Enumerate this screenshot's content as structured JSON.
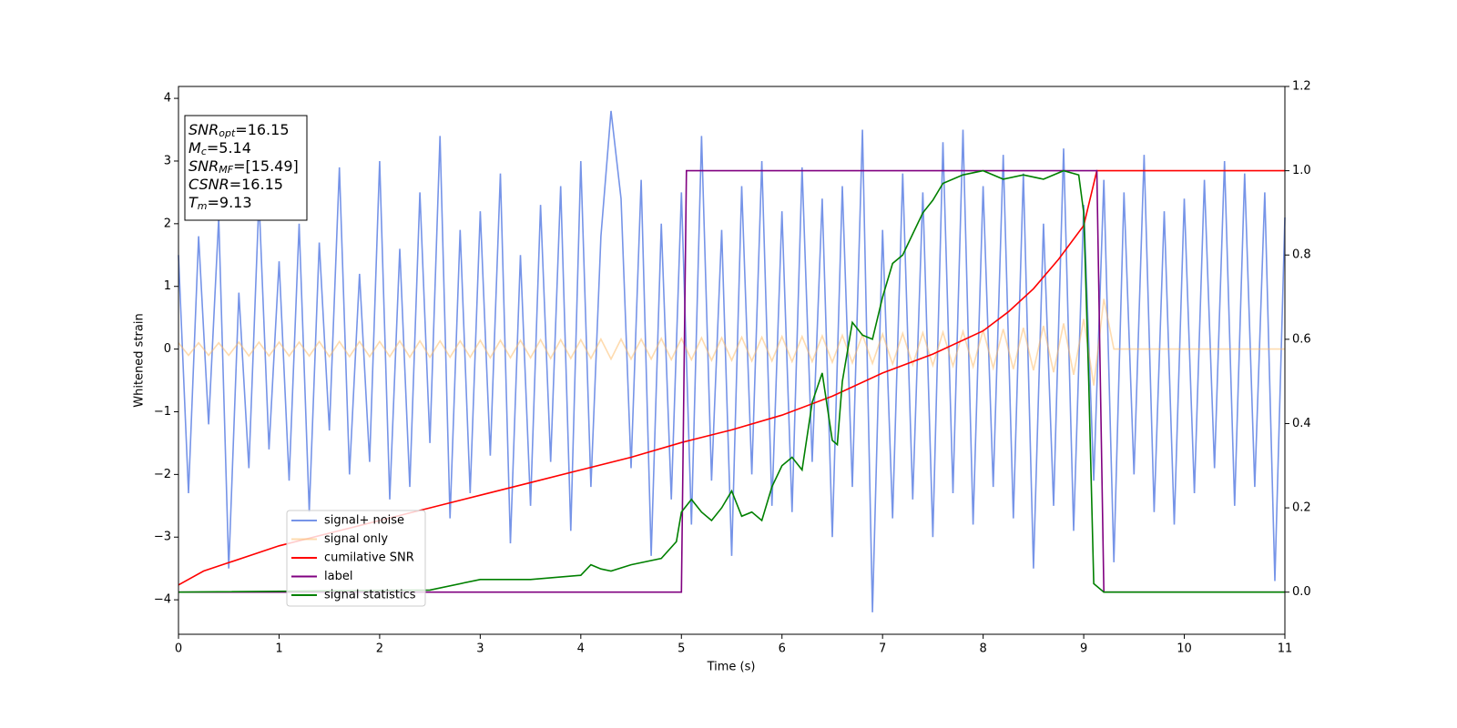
{
  "chart_data": {
    "type": "line",
    "xlabel": "Time (s)",
    "ylabel": "Whitened strain",
    "xlim": [
      0,
      11
    ],
    "xticks": [
      0,
      1,
      2,
      3,
      4,
      5,
      6,
      7,
      8,
      9,
      10,
      11
    ],
    "ylim": [
      -4.55,
      4.19
    ],
    "yticks": [
      {
        "value": -4,
        "label": "−4"
      },
      {
        "value": -3,
        "label": "−3"
      },
      {
        "value": -2,
        "label": "−2"
      },
      {
        "value": -1,
        "label": "−1"
      },
      0,
      1,
      2,
      3,
      4
    ],
    "y2lim": [
      -0.1,
      1.2
    ],
    "y2ticks": [
      {
        "value": 0,
        "label": "0.0"
      },
      {
        "value": 0.2,
        "label": "0.2"
      },
      {
        "value": 0.4,
        "label": "0.4"
      },
      {
        "value": 0.6,
        "label": "0.6"
      },
      {
        "value": 0.8,
        "label": "0.8"
      },
      {
        "value": 1,
        "label": "1.0"
      },
      {
        "value": 1.2,
        "label": "1.2"
      }
    ],
    "legend": "lower left",
    "annotation": [
      {
        "main": "SNR",
        "sub": "opt",
        "rest": "=16.15"
      },
      {
        "main": "M",
        "sub": "c",
        "rest": "=5.14"
      },
      {
        "main": "SNR",
        "sub": "MF",
        "rest": "=[15.49]"
      },
      {
        "main": "CSNR",
        "sub": "",
        "rest": "=16.15"
      },
      {
        "main": "T",
        "sub": "m",
        "rest": "=9.13"
      }
    ],
    "series": [
      {
        "name": "signal+ noise",
        "color": "#7694e8",
        "opacity": 1,
        "x": [
          0,
          0.1,
          0.2,
          0.3,
          0.4,
          0.5,
          0.6,
          0.7,
          0.8,
          0.9,
          1,
          1.1,
          1.2,
          1.3,
          1.4,
          1.5,
          1.6,
          1.7,
          1.8,
          1.9,
          2,
          2.1,
          2.2,
          2.3,
          2.4,
          2.5,
          2.6,
          2.7,
          2.8,
          2.9,
          3,
          3.1,
          3.2,
          3.3,
          3.4,
          3.5,
          3.6,
          3.7,
          3.8,
          3.9,
          4,
          4.1,
          4.2,
          4.3,
          4.4,
          4.5,
          4.6,
          4.7,
          4.8,
          4.9,
          5,
          5.1,
          5.2,
          5.3,
          5.4,
          5.5,
          5.6,
          5.7,
          5.8,
          5.9,
          6,
          6.1,
          6.2,
          6.3,
          6.4,
          6.5,
          6.6,
          6.7,
          6.8,
          6.9,
          7,
          7.1,
          7.2,
          7.3,
          7.4,
          7.5,
          7.6,
          7.7,
          7.8,
          7.9,
          8,
          8.1,
          8.2,
          8.3,
          8.4,
          8.5,
          8.6,
          8.7,
          8.8,
          8.9,
          9,
          9.1,
          9.2,
          9.3,
          9.4,
          9.5,
          9.6,
          9.7,
          9.8,
          9.9,
          10,
          10.1,
          10.2,
          10.3,
          10.4,
          10.5,
          10.6,
          10.7,
          10.8,
          10.9,
          11
        ],
        "values": [
          1.5,
          -2.3,
          1.8,
          -1.2,
          2.1,
          -3.5,
          0.9,
          -1.9,
          2.4,
          -1.6,
          1.4,
          -2.1,
          2.0,
          -2.6,
          1.7,
          -1.3,
          2.9,
          -2.0,
          1.2,
          -1.8,
          3.0,
          -2.4,
          1.6,
          -2.2,
          2.5,
          -1.5,
          3.4,
          -2.7,
          1.9,
          -2.3,
          2.2,
          -1.7,
          2.8,
          -3.1,
          1.5,
          -2.5,
          2.3,
          -1.8,
          2.6,
          -2.9,
          3.0,
          -2.2,
          1.8,
          3.8,
          2.4,
          -1.9,
          2.7,
          -3.3,
          2.0,
          -2.4,
          2.5,
          -2.8,
          3.4,
          -2.1,
          1.9,
          -3.3,
          2.6,
          -2.0,
          3.0,
          -2.5,
          2.2,
          -2.6,
          2.9,
          -1.8,
          2.4,
          -3.0,
          2.6,
          -2.2,
          3.5,
          -4.2,
          1.9,
          -2.7,
          2.8,
          -2.4,
          2.5,
          -3.0,
          3.3,
          -2.3,
          3.5,
          -2.8,
          2.6,
          -2.2,
          3.1,
          -2.7,
          2.8,
          -3.5,
          2.0,
          -2.5,
          3.2,
          -2.9,
          2.3,
          -2.1,
          2.7,
          -3.4,
          2.5,
          -2.0,
          3.1,
          -2.6,
          2.2,
          -2.8,
          2.4,
          -2.3,
          2.7,
          -1.9,
          3.0,
          -2.5,
          2.8,
          -2.2,
          2.5,
          -3.7,
          2.1
        ]
      },
      {
        "name": "signal only",
        "color": "#fdb860",
        "opacity": 0.5,
        "x": [
          0,
          0.1,
          0.2,
          0.3,
          0.4,
          0.5,
          0.6,
          0.7,
          0.8,
          0.9,
          1,
          1.1,
          1.2,
          1.3,
          1.4,
          1.5,
          1.6,
          1.7,
          1.8,
          1.9,
          2,
          2.1,
          2.2,
          2.3,
          2.4,
          2.5,
          2.6,
          2.7,
          2.8,
          2.9,
          3,
          3.1,
          3.2,
          3.3,
          3.4,
          3.5,
          3.6,
          3.7,
          3.8,
          3.9,
          4,
          4.1,
          4.2,
          4.3,
          4.4,
          4.5,
          4.6,
          4.7,
          4.8,
          4.9,
          5,
          5.1,
          5.2,
          5.3,
          5.4,
          5.5,
          5.6,
          5.7,
          5.8,
          5.9,
          6,
          6.1,
          6.2,
          6.3,
          6.4,
          6.5,
          6.6,
          6.7,
          6.8,
          6.9,
          7,
          7.1,
          7.2,
          7.3,
          7.4,
          7.5,
          7.6,
          7.7,
          7.8,
          7.9,
          8,
          8.1,
          8.2,
          8.3,
          8.4,
          8.5,
          8.6,
          8.7,
          8.8,
          8.9,
          9,
          9.1,
          9.2,
          9.3,
          9.4,
          9.5,
          9.6,
          9.7,
          9.8,
          9.9,
          10,
          10.1,
          10.2,
          10.3,
          10.4,
          10.5,
          10.6,
          10.7,
          10.8,
          10.9,
          11
        ],
        "values": [
          0.1,
          -0.1,
          0.1,
          -0.1,
          0.1,
          -0.1,
          0.11,
          -0.11,
          0.11,
          -0.11,
          0.11,
          -0.11,
          0.11,
          -0.11,
          0.12,
          -0.12,
          0.12,
          -0.12,
          0.12,
          -0.12,
          0.12,
          -0.12,
          0.13,
          -0.13,
          0.13,
          -0.13,
          0.13,
          -0.13,
          0.13,
          -0.13,
          0.14,
          -0.14,
          0.14,
          -0.14,
          0.14,
          -0.14,
          0.15,
          -0.15,
          0.15,
          -0.15,
          0.15,
          -0.15,
          0.16,
          -0.16,
          0.16,
          -0.16,
          0.16,
          -0.16,
          0.17,
          -0.17,
          0.17,
          -0.17,
          0.18,
          -0.18,
          0.18,
          -0.18,
          0.19,
          -0.19,
          0.19,
          -0.19,
          0.2,
          -0.2,
          0.2,
          -0.2,
          0.21,
          -0.21,
          0.22,
          -0.22,
          0.23,
          -0.23,
          0.24,
          -0.24,
          0.25,
          -0.25,
          0.26,
          -0.26,
          0.27,
          -0.27,
          0.28,
          -0.28,
          0.3,
          -0.3,
          0.32,
          -0.32,
          0.34,
          -0.34,
          0.37,
          -0.37,
          0.41,
          -0.41,
          0.48,
          -0.58,
          0.8,
          0,
          0,
          0,
          0,
          0,
          0,
          0,
          0,
          0,
          0,
          0,
          0,
          0,
          0,
          0,
          0,
          0,
          0
        ]
      },
      {
        "name": "cumilative SNR",
        "color": "#ff0000",
        "opacity": 1,
        "axis": "y2",
        "x": [
          0,
          0.25,
          0.5,
          1,
          1.5,
          2,
          2.5,
          3,
          3.5,
          4,
          4.5,
          5,
          5.5,
          6,
          6.5,
          7,
          7.5,
          8,
          8.25,
          8.5,
          8.75,
          9,
          9.13,
          11
        ],
        "values": [
          0.017,
          0.05,
          0.07,
          0.11,
          0.14,
          0.17,
          0.2,
          0.23,
          0.26,
          0.29,
          0.32,
          0.355,
          0.385,
          0.42,
          0.465,
          0.52,
          0.565,
          0.62,
          0.665,
          0.72,
          0.79,
          0.87,
          1.0,
          1.0
        ]
      },
      {
        "name": "label",
        "color": "#800080",
        "opacity": 1,
        "axis": "y2",
        "x": [
          0,
          5,
          5.05,
          9.13,
          9.2,
          11
        ],
        "values": [
          0,
          0,
          1,
          1,
          0,
          0
        ]
      },
      {
        "name": "signal statistics",
        "color": "#008000",
        "opacity": 1,
        "axis": "y2",
        "x": [
          0,
          2.5,
          3,
          3.5,
          4,
          4.1,
          4.2,
          4.3,
          4.5,
          4.8,
          4.95,
          5,
          5.1,
          5.2,
          5.3,
          5.4,
          5.5,
          5.6,
          5.7,
          5.8,
          5.9,
          6,
          6.1,
          6.2,
          6.3,
          6.4,
          6.5,
          6.55,
          6.6,
          6.7,
          6.8,
          6.9,
          7,
          7.1,
          7.2,
          7.3,
          7.4,
          7.5,
          7.6,
          7.8,
          8,
          8.2,
          8.4,
          8.6,
          8.8,
          8.95,
          9,
          9.05,
          9.1,
          9.2,
          11
        ],
        "values": [
          0,
          0.005,
          0.03,
          0.03,
          0.04,
          0.065,
          0.055,
          0.05,
          0.065,
          0.08,
          0.12,
          0.19,
          0.22,
          0.19,
          0.17,
          0.2,
          0.24,
          0.18,
          0.19,
          0.17,
          0.25,
          0.3,
          0.32,
          0.29,
          0.45,
          0.52,
          0.36,
          0.35,
          0.5,
          0.64,
          0.61,
          0.6,
          0.7,
          0.78,
          0.8,
          0.85,
          0.9,
          0.93,
          0.97,
          0.99,
          1.0,
          0.98,
          0.99,
          0.98,
          1.0,
          0.99,
          0.9,
          0.5,
          0.02,
          0,
          0
        ]
      }
    ]
  }
}
